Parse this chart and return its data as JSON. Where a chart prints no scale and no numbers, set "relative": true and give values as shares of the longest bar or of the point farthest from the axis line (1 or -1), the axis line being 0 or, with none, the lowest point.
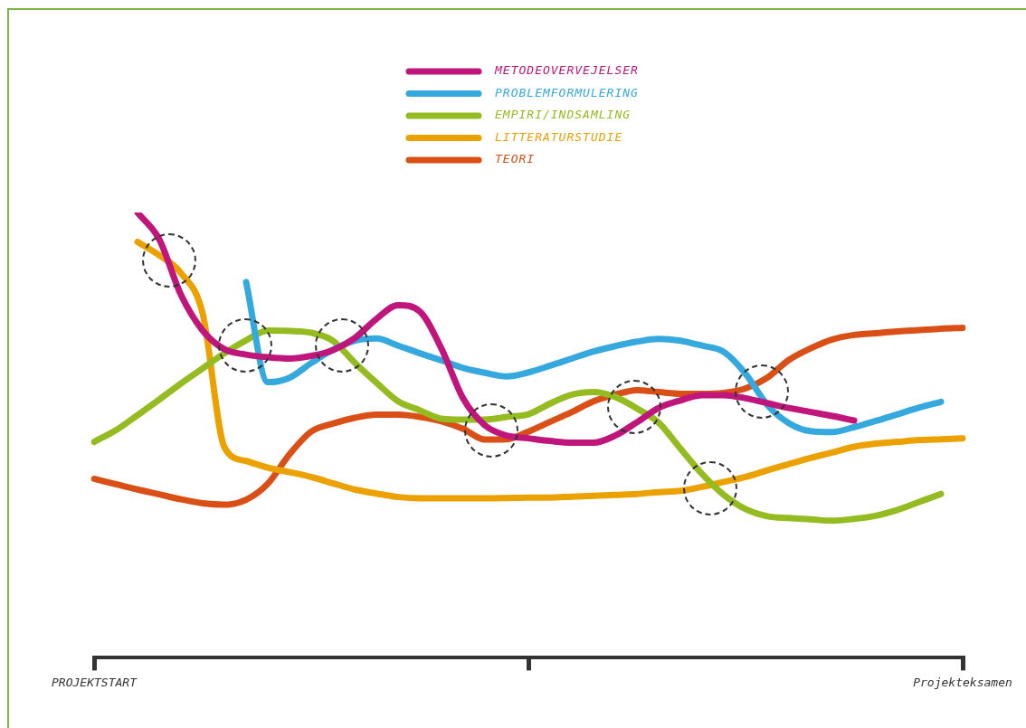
{
  "chart_data": {
    "type": "line",
    "relative": true,
    "marker": "none",
    "legend": "top",
    "tick_labels": "x",
    "categories": [
      "PROJEKTSTART",
      null,
      null,
      null,
      null,
      null,
      null,
      null,
      null,
      null,
      null,
      null,
      null,
      null,
      null,
      null,
      null,
      null,
      null,
      null,
      null,
      null,
      null,
      null,
      null,
      null,
      null,
      null,
      null,
      null,
      null,
      null,
      null,
      null,
      null,
      null,
      null,
      null,
      null,
      null,
      "Projekteksamen"
    ],
    "series": [
      {
        "name": "METODEOVERVEJELSER",
        "color": "#c0157a",
        "values": [
          null,
          null,
          1.0,
          0.94,
          0.815,
          0.735,
          0.693,
          0.681,
          0.675,
          0.672,
          0.678,
          0.691,
          0.718,
          0.761,
          0.792,
          0.778,
          0.694,
          0.582,
          0.522,
          0.499,
          0.493,
          0.487,
          0.483,
          0.483,
          0.499,
          0.529,
          0.561,
          0.578,
          0.59,
          0.59,
          0.583,
          0.572,
          0.561,
          0.552,
          0.543,
          0.533,
          null,
          null,
          null,
          null,
          null
        ]
      },
      {
        "name": "PROBLEMFORMULERING",
        "color": "#35a9de",
        "values": [
          null,
          null,
          null,
          null,
          null,
          null,
          null,
          0.844,
          0.619,
          0.629,
          0.662,
          0.692,
          0.712,
          0.717,
          0.701,
          0.684,
          0.668,
          0.651,
          0.64,
          0.632,
          0.641,
          0.656,
          0.672,
          0.688,
          0.7,
          0.71,
          0.716,
          0.712,
          0.701,
          0.687,
          0.638,
          0.568,
          0.527,
          0.509,
          0.507,
          0.518,
          0.532,
          0.547,
          0.562,
          0.575,
          null
        ]
      },
      {
        "name": "EMPIRI/INDSAMLING",
        "color": "#94bb1f",
        "values": [
          0.485,
          0.511,
          0.545,
          0.58,
          0.616,
          0.65,
          0.684,
          0.713,
          0.735,
          0.734,
          0.73,
          0.712,
          0.663,
          0.618,
          0.576,
          0.556,
          0.537,
          0.535,
          0.535,
          0.541,
          0.547,
          0.571,
          0.591,
          0.597,
          0.586,
          0.56,
          0.528,
          0.47,
          0.413,
          0.366,
          0.334,
          0.318,
          0.314,
          0.311,
          0.308,
          0.312,
          0.319,
          0.332,
          0.35,
          0.368,
          null
        ]
      },
      {
        "name": "LITTERATURSTUDIE",
        "color": "#eba200",
        "values": [
          null,
          null,
          0.934,
          0.904,
          0.864,
          0.773,
          0.473,
          0.442,
          0.427,
          0.417,
          0.406,
          0.392,
          0.378,
          0.369,
          0.361,
          0.358,
          0.358,
          0.358,
          0.358,
          0.359,
          0.36,
          0.36,
          0.362,
          0.364,
          0.366,
          0.368,
          0.372,
          0.375,
          0.384,
          0.395,
          0.406,
          0.421,
          0.435,
          0.449,
          0.461,
          0.474,
          0.481,
          0.485,
          0.489,
          0.491,
          0.493
        ]
      },
      {
        "name": "TEORI",
        "color": "#d94f16",
        "values": [
          0.402,
          0.39,
          0.378,
          0.367,
          0.356,
          0.347,
          0.344,
          0.355,
          0.391,
          0.457,
          0.508,
          0.526,
          0.539,
          0.546,
          0.546,
          0.541,
          0.531,
          0.514,
          0.49,
          0.491,
          0.508,
          0.53,
          0.552,
          0.576,
          0.591,
          0.601,
          0.597,
          0.593,
          0.593,
          0.595,
          0.605,
          0.629,
          0.669,
          0.695,
          0.715,
          0.725,
          0.729,
          0.733,
          0.736,
          0.739,
          0.741
        ]
      }
    ]
  }
}
